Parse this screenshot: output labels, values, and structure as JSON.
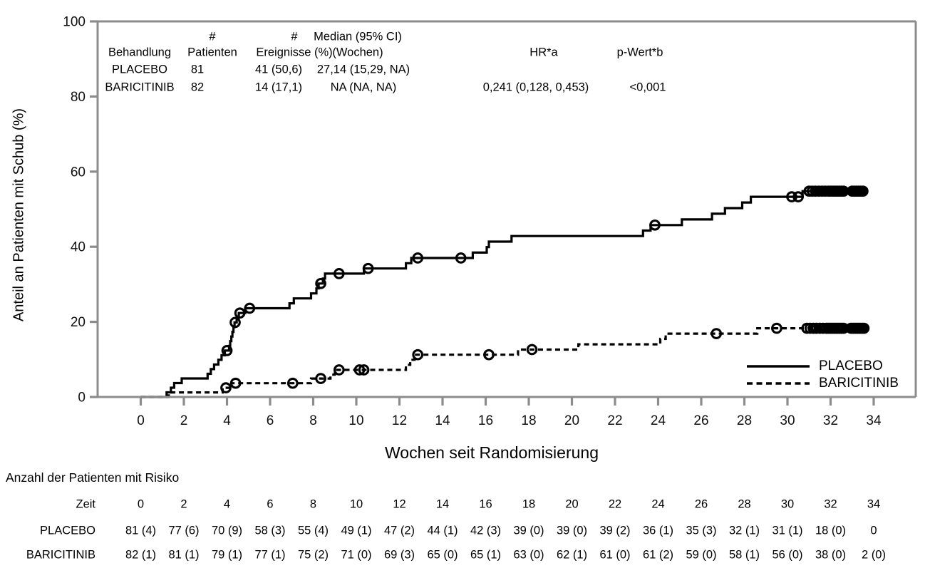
{
  "figure": {
    "background": "#ffffff",
    "axis_color": "#8c8c8c",
    "curve_color": "#000000",
    "text_color": "#000000"
  },
  "stats_table": {
    "columns": [
      {
        "top": "",
        "bottom": "Behandlung"
      },
      {
        "top": "#",
        "bottom": "Patienten"
      },
      {
        "top": "#",
        "bottom": "Ereignisse (%)"
      },
      {
        "top": "Median (95% CI)",
        "bottom": "(Wochen)"
      },
      {
        "top": "",
        "bottom": "HR*a"
      },
      {
        "top": "",
        "bottom": "p-Wert*b"
      }
    ],
    "rows": [
      [
        "PLACEBO",
        "81",
        "41 (50,6)",
        "27,14 (15,29, NA)",
        "",
        ""
      ],
      [
        "BARICITINIB",
        "82",
        "14 (17,1)",
        "NA (NA, NA)",
        "0,241 (0,128, 0,453)",
        "<0,001"
      ]
    ]
  },
  "chart_data": {
    "type": "line",
    "subtype": "kaplan-meier-step",
    "title": "",
    "xlabel": "Wochen seit Randomisierung",
    "ylabel": "Anteil an Patienten mit Schub (%)",
    "xlim": [
      0,
      34
    ],
    "ylim": [
      0,
      100
    ],
    "xticks": [
      0,
      2,
      4,
      6,
      8,
      10,
      12,
      14,
      16,
      18,
      20,
      22,
      24,
      26,
      28,
      30,
      32,
      34
    ],
    "yticks": [
      0,
      20,
      40,
      60,
      80,
      100
    ],
    "grid": false,
    "legend_position": "lower-right",
    "series": [
      {
        "name": "PLACEBO",
        "style": "solid",
        "end_week": 33.6,
        "steps": [
          [
            0,
            0
          ],
          [
            1.2,
            1.23
          ],
          [
            1.4,
            2.47
          ],
          [
            1.55,
            3.7
          ],
          [
            1.9,
            4.94
          ],
          [
            3.1,
            6.17
          ],
          [
            3.25,
            7.41
          ],
          [
            3.4,
            8.64
          ],
          [
            3.6,
            9.88
          ],
          [
            3.75,
            11.11
          ],
          [
            3.9,
            12.35
          ],
          [
            4.1,
            13.6
          ],
          [
            4.15,
            14.85
          ],
          [
            4.2,
            16.1
          ],
          [
            4.25,
            17.35
          ],
          [
            4.3,
            18.6
          ],
          [
            4.35,
            19.85
          ],
          [
            4.45,
            21.1
          ],
          [
            4.55,
            22.36
          ],
          [
            4.85,
            23.62
          ],
          [
            6.9,
            24.93
          ],
          [
            7.1,
            26.25
          ],
          [
            7.9,
            27.57
          ],
          [
            8.15,
            28.89
          ],
          [
            8.25,
            30.2
          ],
          [
            8.45,
            31.52
          ],
          [
            8.55,
            32.84
          ],
          [
            10.35,
            34.21
          ],
          [
            12.3,
            35.61
          ],
          [
            12.55,
            37.01
          ],
          [
            15.4,
            38.44
          ],
          [
            16.05,
            39.9
          ],
          [
            16.15,
            41.37
          ],
          [
            17.2,
            42.84
          ],
          [
            23.3,
            44.3
          ],
          [
            23.65,
            45.77
          ],
          [
            25.1,
            47.27
          ],
          [
            26.5,
            48.78
          ],
          [
            27.1,
            50.29
          ],
          [
            27.9,
            51.79
          ],
          [
            28.3,
            53.3
          ],
          [
            30.7,
            54.81
          ]
        ],
        "censors": [
          [
            4.0,
            12.35
          ],
          [
            4.38,
            19.85
          ],
          [
            4.6,
            22.36
          ],
          [
            5.05,
            23.62
          ],
          [
            8.35,
            30.2
          ],
          [
            9.2,
            32.84
          ],
          [
            10.55,
            34.21
          ],
          [
            12.85,
            37.01
          ],
          [
            14.85,
            37.01
          ],
          [
            23.85,
            45.77
          ],
          [
            30.2,
            53.3
          ],
          [
            30.5,
            53.3
          ],
          [
            31.0,
            54.81
          ],
          [
            31.15,
            54.81
          ],
          [
            31.3,
            54.81
          ],
          [
            31.45,
            54.81
          ],
          [
            31.6,
            54.81
          ],
          [
            31.75,
            54.81
          ],
          [
            31.9,
            54.81
          ],
          [
            32.0,
            54.81
          ],
          [
            32.1,
            54.81
          ],
          [
            32.2,
            54.81
          ],
          [
            32.3,
            54.81
          ],
          [
            32.4,
            54.81
          ],
          [
            32.5,
            54.81
          ],
          [
            32.6,
            54.81
          ],
          [
            33.0,
            54.81
          ],
          [
            33.1,
            54.81
          ],
          [
            33.2,
            54.81
          ],
          [
            33.3,
            54.81
          ],
          [
            33.4,
            54.81
          ],
          [
            33.5,
            54.81
          ]
        ]
      },
      {
        "name": "BARICITINIB",
        "style": "dashed",
        "end_week": 33.6,
        "steps": [
          [
            0,
            0
          ],
          [
            1.3,
            1.22
          ],
          [
            3.8,
            2.44
          ],
          [
            4.2,
            3.67
          ],
          [
            7.9,
            4.92
          ],
          [
            8.8,
            5.94
          ],
          [
            9.0,
            7.21
          ],
          [
            12.3,
            8.56
          ],
          [
            12.5,
            9.9
          ],
          [
            12.7,
            11.25
          ],
          [
            17.5,
            12.61
          ],
          [
            20.3,
            14.02
          ],
          [
            24.1,
            15.46
          ],
          [
            24.35,
            16.86
          ],
          [
            28.6,
            18.3
          ]
        ],
        "censors": [
          [
            3.95,
            2.44
          ],
          [
            4.4,
            3.67
          ],
          [
            7.05,
            3.67
          ],
          [
            8.35,
            4.92
          ],
          [
            9.2,
            7.21
          ],
          [
            10.15,
            7.21
          ],
          [
            10.35,
            7.21
          ],
          [
            12.85,
            11.25
          ],
          [
            16.15,
            11.25
          ],
          [
            18.15,
            12.61
          ],
          [
            26.7,
            16.86
          ],
          [
            29.5,
            18.3
          ],
          [
            30.9,
            18.3
          ],
          [
            31.05,
            18.3
          ],
          [
            31.2,
            18.3
          ],
          [
            31.35,
            18.3
          ],
          [
            31.5,
            18.3
          ],
          [
            31.65,
            18.3
          ],
          [
            31.8,
            18.3
          ],
          [
            31.9,
            18.3
          ],
          [
            32.0,
            18.3
          ],
          [
            32.1,
            18.3
          ],
          [
            32.2,
            18.3
          ],
          [
            32.3,
            18.3
          ],
          [
            32.4,
            18.3
          ],
          [
            32.5,
            18.3
          ],
          [
            32.6,
            18.3
          ],
          [
            32.95,
            18.3
          ],
          [
            33.05,
            18.3
          ],
          [
            33.15,
            18.3
          ],
          [
            33.25,
            18.3
          ],
          [
            33.35,
            18.3
          ],
          [
            33.45,
            18.3
          ],
          [
            33.55,
            18.3
          ]
        ]
      }
    ]
  },
  "risk_table": {
    "title": "Anzahl der Patienten mit Risiko",
    "time_label": "Zeit",
    "times": [
      "0",
      "2",
      "4",
      "6",
      "8",
      "10",
      "12",
      "14",
      "16",
      "18",
      "20",
      "22",
      "24",
      "26",
      "28",
      "30",
      "32",
      "34"
    ],
    "rows": [
      {
        "label": "PLACEBO",
        "values": [
          "81 (4)",
          "77 (6)",
          "70 (9)",
          "58 (3)",
          "55 (4)",
          "49 (1)",
          "47 (2)",
          "44 (1)",
          "42 (3)",
          "39 (0)",
          "39 (0)",
          "39 (2)",
          "36 (1)",
          "35 (3)",
          "32 (1)",
          "31 (1)",
          "18 (0)",
          "0"
        ]
      },
      {
        "label": "BARICITINIB",
        "values": [
          "82 (1)",
          "81 (1)",
          "79 (1)",
          "77 (1)",
          "75 (2)",
          "71 (0)",
          "69 (3)",
          "65 (0)",
          "65 (1)",
          "63 (0)",
          "62 (1)",
          "61 (0)",
          "61 (2)",
          "59 (0)",
          "58 (1)",
          "56 (0)",
          "38 (0)",
          "2 (0)"
        ]
      }
    ]
  }
}
